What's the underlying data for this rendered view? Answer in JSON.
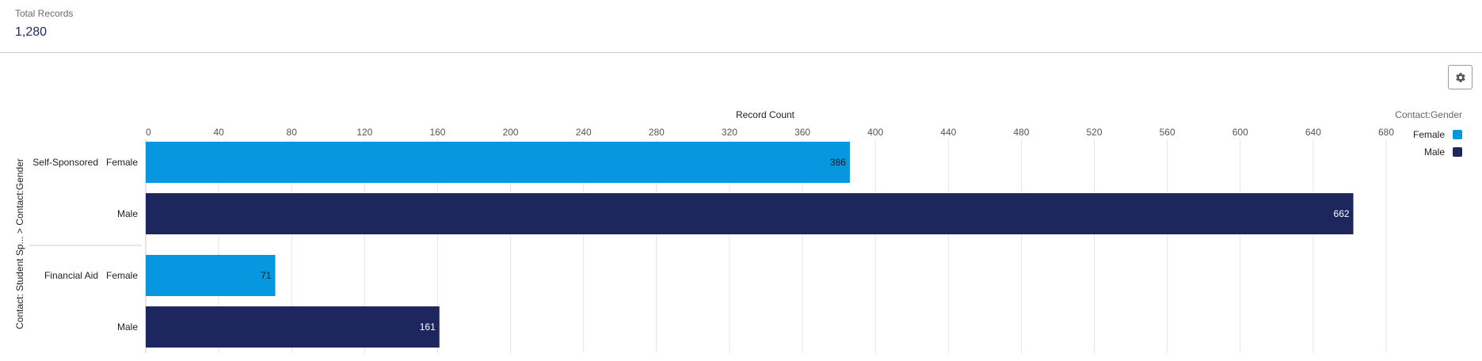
{
  "summary": {
    "label": "Total Records",
    "value": "1,280"
  },
  "toolbar": {
    "settings_icon": "gear-icon"
  },
  "chart_data": {
    "type": "bar",
    "orientation": "horizontal",
    "xlabel": "Record Count",
    "ylabel": "Contact: Student Sp... > Contact:Gender",
    "xlim": [
      0,
      680
    ],
    "xticks": [
      0,
      40,
      80,
      120,
      160,
      200,
      240,
      280,
      320,
      360,
      400,
      440,
      480,
      520,
      560,
      600,
      640,
      680
    ],
    "grid": true,
    "legend": {
      "title": "Contact:Gender",
      "placement": "top-right"
    },
    "series": [
      {
        "name": "Female",
        "color": "#0796E0"
      },
      {
        "name": "Male",
        "color": "#1D275D"
      }
    ],
    "groups": [
      {
        "name": "Self-Sponsored",
        "bars": [
          {
            "label": "Female",
            "value": 386
          },
          {
            "label": "Male",
            "value": 662
          }
        ]
      },
      {
        "name": "Financial Aid",
        "bars": [
          {
            "label": "Female",
            "value": 71
          },
          {
            "label": "Male",
            "value": 161
          }
        ]
      }
    ]
  }
}
